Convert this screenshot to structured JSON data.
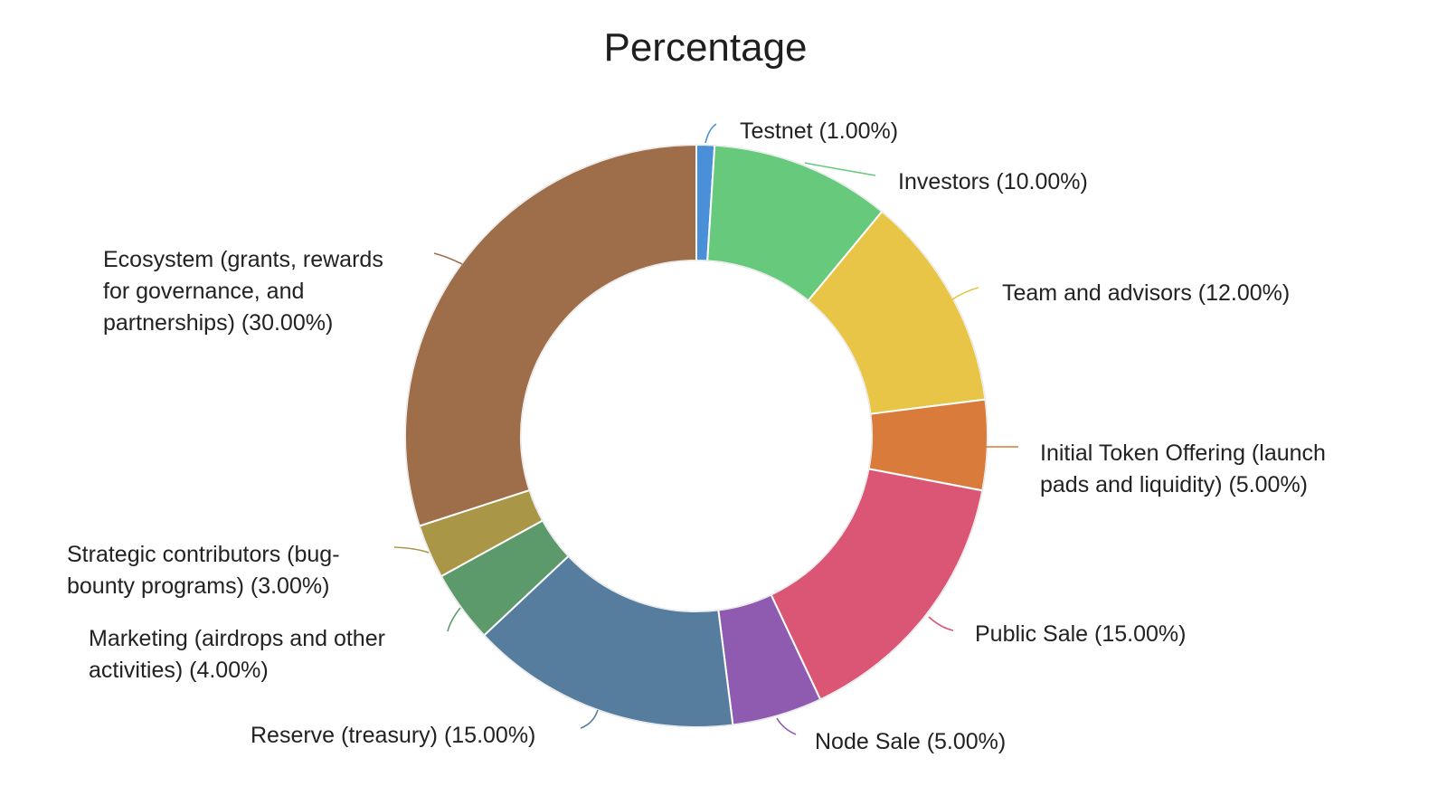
{
  "chart_data": {
    "type": "pie",
    "donut": true,
    "title": "Percentage",
    "start_angle_deg": 0,
    "slices": [
      {
        "name": "Testnet",
        "value": 1.0,
        "color": "#4A90D9",
        "label_lines": [
          "Testnet (1.00%)"
        ]
      },
      {
        "name": "Investors",
        "value": 10.0,
        "color": "#66C97B",
        "label_lines": [
          "Investors (10.00%)"
        ]
      },
      {
        "name": "Team and advisors",
        "value": 12.0,
        "color": "#E8C547",
        "label_lines": [
          "Team and advisors (12.00%)"
        ]
      },
      {
        "name": "Initial Token Offering (launch pads and liquidity)",
        "value": 5.0,
        "color": "#D97B3A",
        "label_lines": [
          "Initial Token Offering (launch",
          "pads and liquidity) (5.00%)"
        ]
      },
      {
        "name": "Public Sale",
        "value": 15.0,
        "color": "#DB5575",
        "label_lines": [
          "Public Sale (15.00%)"
        ]
      },
      {
        "name": "Node Sale",
        "value": 5.0,
        "color": "#8E5BB0",
        "label_lines": [
          "Node Sale (5.00%)"
        ]
      },
      {
        "name": "Reserve (treasury)",
        "value": 15.0,
        "color": "#567C9E",
        "label_lines": [
          "Reserve (treasury) (15.00%)"
        ]
      },
      {
        "name": "Marketing (airdrops and other activities)",
        "value": 4.0,
        "color": "#5C9A6C",
        "label_lines": [
          "Marketing (airdrops and other",
          "activities) (4.00%)"
        ]
      },
      {
        "name": "Strategic contributors (bug-bounty programs)",
        "value": 3.0,
        "color": "#A99646",
        "label_lines": [
          "Strategic contributors (bug-",
          "bounty programs) (3.00%)"
        ]
      },
      {
        "name": "Ecosystem (grants, rewards for governance, and partnerships)",
        "value": 30.0,
        "color": "#9D6E49",
        "label_lines": [
          "Ecosystem (grants, rewards",
          "for governance, and",
          "partnerships) (30.00%)"
        ]
      }
    ]
  }
}
